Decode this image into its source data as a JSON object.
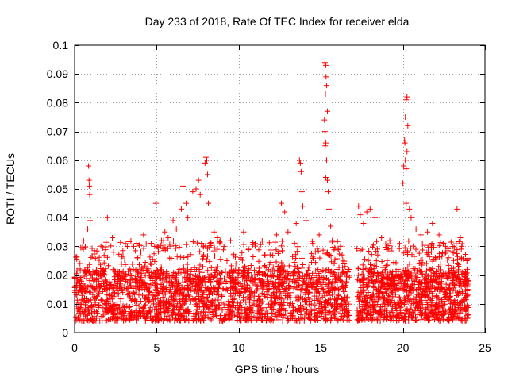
{
  "chart_data": {
    "type": "scatter",
    "title": "Day 233 of 2018, Rate Of TEC Index for receiver elda",
    "xlabel": "GPS time / hours",
    "ylabel": "ROTI / TECUs",
    "xlim": [
      0,
      25
    ],
    "ylim": [
      0,
      0.1
    ],
    "xticks": [
      0,
      5,
      10,
      15,
      20,
      25
    ],
    "xtick_labels": [
      "0",
      "5",
      "10",
      "15",
      "20",
      "25"
    ],
    "yticks": [
      0,
      0.01,
      0.02,
      0.03,
      0.04,
      0.05,
      0.06,
      0.07,
      0.08,
      0.09,
      0.1
    ],
    "ytick_labels": [
      "0",
      "0.01",
      "0.02",
      "0.03",
      "0.04",
      "0.05",
      "0.06",
      "0.07",
      "0.08",
      "0.09",
      "0.1"
    ],
    "grid": true,
    "marker": "+",
    "color": "#ff0000",
    "data_gap_hours": [
      16.75,
      17.2
    ],
    "series": [
      {
        "name": "ROTI",
        "points": [
          [
            0.85,
            0.058
          ],
          [
            0.88,
            0.053
          ],
          [
            0.9,
            0.051
          ],
          [
            0.92,
            0.048
          ],
          [
            0.95,
            0.039
          ],
          [
            0.8,
            0.036
          ],
          [
            2.0,
            0.04
          ],
          [
            2.3,
            0.033
          ],
          [
            3.1,
            0.031
          ],
          [
            3.6,
            0.03
          ],
          [
            4.2,
            0.034
          ],
          [
            4.95,
            0.045
          ],
          [
            5.3,
            0.032
          ],
          [
            5.5,
            0.035
          ],
          [
            5.7,
            0.033
          ],
          [
            6.0,
            0.039
          ],
          [
            6.2,
            0.036
          ],
          [
            6.5,
            0.043
          ],
          [
            6.6,
            0.051
          ],
          [
            6.8,
            0.045
          ],
          [
            6.9,
            0.04
          ],
          [
            7.2,
            0.049
          ],
          [
            7.4,
            0.05
          ],
          [
            7.55,
            0.053
          ],
          [
            7.65,
            0.048
          ],
          [
            7.95,
            0.059
          ],
          [
            8.0,
            0.061
          ],
          [
            8.05,
            0.06
          ],
          [
            8.1,
            0.055
          ],
          [
            8.15,
            0.045
          ],
          [
            8.5,
            0.035
          ],
          [
            8.7,
            0.033
          ],
          [
            9.1,
            0.03
          ],
          [
            9.5,
            0.032
          ],
          [
            10.3,
            0.035
          ],
          [
            10.6,
            0.029
          ],
          [
            11.0,
            0.031
          ],
          [
            11.6,
            0.027
          ],
          [
            12.3,
            0.034
          ],
          [
            12.6,
            0.045
          ],
          [
            12.8,
            0.042
          ],
          [
            13.0,
            0.035
          ],
          [
            13.5,
            0.038
          ],
          [
            13.7,
            0.06
          ],
          [
            13.75,
            0.059
          ],
          [
            13.8,
            0.056
          ],
          [
            13.85,
            0.049
          ],
          [
            13.9,
            0.044
          ],
          [
            14.1,
            0.039
          ],
          [
            14.5,
            0.031
          ],
          [
            14.9,
            0.034
          ],
          [
            15.25,
            0.094
          ],
          [
            15.3,
            0.093
          ],
          [
            15.32,
            0.089
          ],
          [
            15.35,
            0.086
          ],
          [
            15.28,
            0.083
          ],
          [
            15.4,
            0.077
          ],
          [
            15.22,
            0.074
          ],
          [
            15.25,
            0.07
          ],
          [
            15.3,
            0.066
          ],
          [
            15.27,
            0.065
          ],
          [
            15.35,
            0.06
          ],
          [
            15.3,
            0.054
          ],
          [
            15.4,
            0.053
          ],
          [
            15.45,
            0.049
          ],
          [
            15.5,
            0.043
          ],
          [
            15.6,
            0.037
          ],
          [
            15.7,
            0.032
          ],
          [
            16.0,
            0.029
          ],
          [
            16.3,
            0.027
          ],
          [
            17.3,
            0.044
          ],
          [
            17.4,
            0.041
          ],
          [
            17.6,
            0.038
          ],
          [
            17.8,
            0.042
          ],
          [
            18.0,
            0.043
          ],
          [
            18.3,
            0.04
          ],
          [
            18.7,
            0.033
          ],
          [
            19.2,
            0.032
          ],
          [
            19.8,
            0.031
          ],
          [
            20.0,
            0.052
          ],
          [
            20.05,
            0.058
          ],
          [
            20.1,
            0.067
          ],
          [
            20.12,
            0.066
          ],
          [
            20.15,
            0.06
          ],
          [
            20.2,
            0.057
          ],
          [
            20.15,
            0.075
          ],
          [
            20.2,
            0.081
          ],
          [
            20.25,
            0.082
          ],
          [
            20.3,
            0.072
          ],
          [
            20.25,
            0.063
          ],
          [
            20.2,
            0.045
          ],
          [
            20.4,
            0.043
          ],
          [
            20.5,
            0.04
          ],
          [
            20.8,
            0.036
          ],
          [
            21.1,
            0.034
          ],
          [
            21.5,
            0.035
          ],
          [
            21.8,
            0.038
          ],
          [
            22.2,
            0.034
          ],
          [
            22.6,
            0.03
          ],
          [
            23.3,
            0.043
          ],
          [
            23.5,
            0.033
          ],
          [
            23.9,
            0.025
          ]
        ],
        "bulk": [
          {
            "x_range": [
              0.0,
              16.75
            ],
            "y_range": [
              0.004,
              0.022
            ],
            "n": 1700
          },
          {
            "x_range": [
              0.0,
              16.75
            ],
            "y_range": [
              0.015,
              0.032
            ],
            "n": 500
          },
          {
            "x_range": [
              17.2,
              24.0
            ],
            "y_range": [
              0.004,
              0.022
            ],
            "n": 800
          },
          {
            "x_range": [
              17.2,
              24.0
            ],
            "y_range": [
              0.015,
              0.032
            ],
            "n": 260
          }
        ]
      }
    ]
  }
}
